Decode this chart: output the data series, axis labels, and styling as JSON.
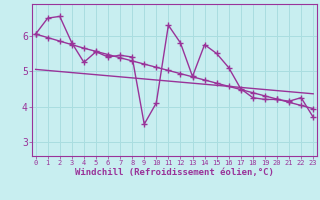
{
  "title": "",
  "xlabel": "Windchill (Refroidissement éolien,°C)",
  "ylabel": "",
  "bg_color": "#c8eef0",
  "line_color": "#993399",
  "grid_color": "#aadde0",
  "x_ticks": [
    0,
    1,
    2,
    3,
    4,
    5,
    6,
    7,
    8,
    9,
    10,
    11,
    12,
    13,
    14,
    15,
    16,
    17,
    18,
    19,
    20,
    21,
    22,
    23
  ],
  "y_ticks": [
    3,
    4,
    5,
    6
  ],
  "xlim": [
    -0.3,
    23.3
  ],
  "ylim": [
    2.6,
    6.9
  ],
  "jagged_x": [
    0,
    1,
    2,
    3,
    4,
    5,
    6,
    7,
    8,
    9,
    10,
    11,
    12,
    13,
    14,
    15,
    16,
    17,
    18,
    19,
    20,
    21,
    22,
    23
  ],
  "jagged_y": [
    6.05,
    6.5,
    6.55,
    5.8,
    5.25,
    5.55,
    5.4,
    5.45,
    5.4,
    3.5,
    4.1,
    6.3,
    5.8,
    4.85,
    5.75,
    5.5,
    5.1,
    4.5,
    4.25,
    4.2,
    4.2,
    4.15,
    4.25,
    3.7
  ],
  "trend1_x": [
    0,
    1,
    2,
    3,
    4,
    5,
    6,
    7,
    8,
    9,
    10,
    11,
    12,
    13,
    14,
    15,
    16,
    17,
    18,
    19,
    20,
    21,
    22,
    23
  ],
  "trend1_y": [
    6.05,
    5.95,
    5.85,
    5.75,
    5.65,
    5.56,
    5.47,
    5.38,
    5.29,
    5.2,
    5.11,
    5.02,
    4.93,
    4.84,
    4.75,
    4.66,
    4.57,
    4.48,
    4.39,
    4.3,
    4.21,
    4.12,
    4.03,
    3.94
  ],
  "trend2_x": [
    0,
    1,
    2,
    3,
    4,
    5,
    6,
    7,
    8,
    9,
    10,
    11,
    12,
    13,
    14,
    15,
    16,
    17,
    18,
    19,
    20,
    21,
    22,
    23
  ],
  "trend2_y": [
    5.05,
    5.02,
    4.99,
    4.96,
    4.93,
    4.9,
    4.87,
    4.84,
    4.81,
    4.78,
    4.75,
    4.72,
    4.69,
    4.66,
    4.63,
    4.6,
    4.57,
    4.54,
    4.51,
    4.48,
    4.45,
    4.42,
    4.39,
    4.36
  ],
  "markersize": 4,
  "linewidth": 1.0
}
